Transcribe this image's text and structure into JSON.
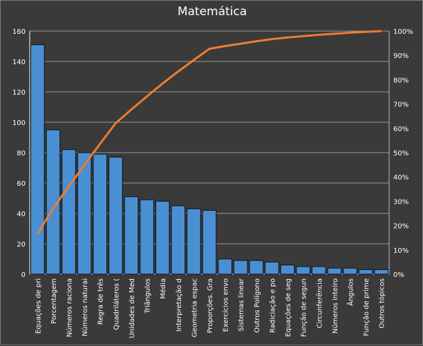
{
  "chart_data": {
    "type": "bar",
    "title": "Matemática",
    "categories": [
      "Equações de pri",
      "Porcentagem",
      "Números raciona",
      "Números naturai",
      "Regra de três",
      "Quadriláteros (",
      "Unidades de Med",
      "Triângulos",
      "Média",
      "Interpretação d",
      "Geometria espac",
      "Proporções. Gra",
      "Exercícios envo",
      "Sistemas linear",
      "Outros Polígono",
      "Radiciação e po",
      "Equações de seg",
      "Função de segun",
      "Circunferência",
      "Números inteiro",
      "Ângulos",
      "Função de prime",
      "Outros tópicos"
    ],
    "series": [
      {
        "type": "bar",
        "axis": "left",
        "color": "#4a8fd4",
        "values": [
          151,
          95,
          82,
          80,
          79,
          77,
          51,
          49,
          48,
          45,
          43,
          42,
          10,
          9,
          9,
          8,
          6,
          5,
          5,
          4,
          4,
          3,
          3
        ]
      },
      {
        "type": "line",
        "axis": "right",
        "color": "#ed7d31",
        "cumulative_percent": true
      }
    ],
    "ylim": [
      0,
      160
    ],
    "yticks": [
      0,
      20,
      40,
      60,
      80,
      100,
      120,
      140,
      160
    ],
    "y2lim": [
      0,
      100
    ],
    "y2ticks": [
      "0%",
      "10%",
      "20%",
      "30%",
      "40%",
      "50%",
      "60%",
      "70%",
      "80%",
      "90%",
      "100%"
    ],
    "grid": true
  }
}
